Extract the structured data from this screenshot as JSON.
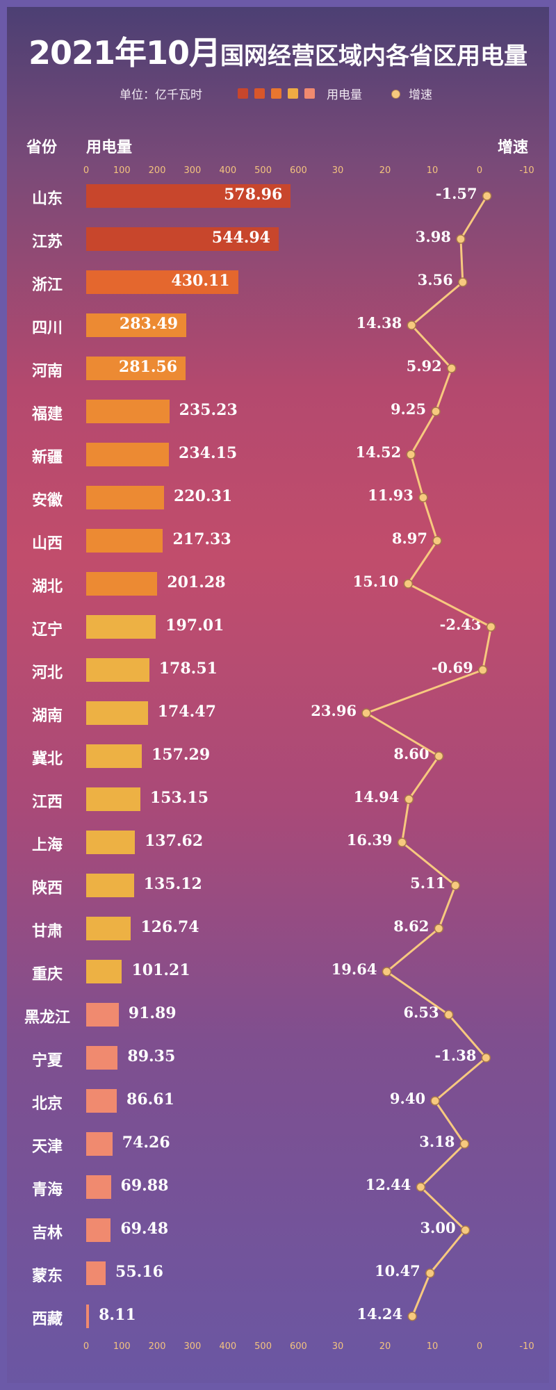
{
  "title": {
    "year_month": "2021年10月",
    "rest": "国网经营区域内各省区用电量"
  },
  "legend": {
    "unit": "单位：亿千瓦时",
    "bar_label": "用电量",
    "line_label": "增速",
    "swatch_colors": [
      "#c8462c",
      "#d9562a",
      "#e8762f",
      "#eeab44",
      "#f08a6f"
    ]
  },
  "headers": {
    "province": "省份",
    "volume": "用电量",
    "growth": "增速"
  },
  "colors": {
    "dark": "#c8462c",
    "mid": "#e4672e",
    "orange": "#ec8a33",
    "gold": "#edb144",
    "salmon": "#f08a6f",
    "line": "#f7c97f"
  },
  "chart_data": {
    "type": "bar",
    "categories": [
      "山东",
      "江苏",
      "浙江",
      "四川",
      "河南",
      "福建",
      "新疆",
      "安徽",
      "山西",
      "湖北",
      "辽宁",
      "河北",
      "湖南",
      "冀北",
      "江西",
      "上海",
      "陕西",
      "甘肃",
      "重庆",
      "黑龙江",
      "宁夏",
      "北京",
      "天津",
      "青海",
      "吉林",
      "蒙东",
      "西藏"
    ],
    "series": [
      {
        "name": "用电量",
        "type": "bar",
        "values": [
          578.96,
          544.94,
          430.11,
          283.49,
          281.56,
          235.23,
          234.15,
          220.31,
          217.33,
          201.28,
          197.01,
          178.51,
          174.47,
          157.29,
          153.15,
          137.62,
          135.12,
          126.74,
          101.21,
          91.89,
          89.35,
          86.61,
          74.26,
          69.88,
          69.48,
          55.16,
          8.11
        ],
        "labels": [
          "578.96",
          "544.94",
          "430.11",
          "283.49",
          "281.56",
          "235.23",
          "234.15",
          "220.31",
          "217.33",
          "201.28",
          "197.01",
          "178.51",
          "174.47",
          "157.29",
          "153.15",
          "137.62",
          "135.12",
          "126.74",
          "101.21",
          "91.89",
          "89.35",
          "86.61",
          "74.26",
          "69.88",
          "69.48",
          "55.16",
          "8.11"
        ]
      },
      {
        "name": "增速",
        "type": "line",
        "values": [
          -1.57,
          3.98,
          3.56,
          14.38,
          5.92,
          9.25,
          14.52,
          11.93,
          8.97,
          15.1,
          -2.43,
          -0.69,
          23.96,
          8.6,
          14.94,
          16.39,
          5.11,
          8.62,
          19.64,
          6.53,
          -1.38,
          9.4,
          3.18,
          12.44,
          3.0,
          10.47,
          14.24
        ],
        "labels": [
          "-1.57",
          "3.98",
          "3.56",
          "14.38",
          "5.92",
          "9.25",
          "14.52",
          "11.93",
          "8.97",
          "15.10",
          "-2.43",
          "-0.69",
          "23.96",
          "8.60",
          "14.94",
          "16.39",
          "5.11",
          "8.62",
          "19.64",
          "6.53",
          "-1.38",
          "9.40",
          "3.18",
          "12.44",
          "3.00",
          "10.47",
          "14.24"
        ]
      }
    ],
    "bar_axis": {
      "range": [
        0,
        600
      ],
      "ticks": [
        "0",
        "100",
        "200",
        "300",
        "400",
        "500",
        "600"
      ]
    },
    "growth_axis": {
      "range": [
        30,
        -10
      ],
      "ticks": [
        "30",
        "20",
        "10",
        "0",
        "-10"
      ]
    }
  }
}
